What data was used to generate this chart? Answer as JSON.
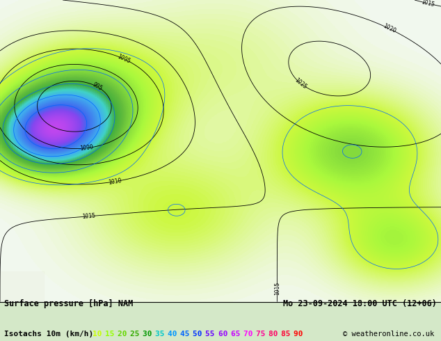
{
  "title_left": "Surface pressure [hPa] NAM",
  "title_right": "Mo 23-09-2024 18:00 UTC (12+06)",
  "subtitle_left": "Isotachs 10m (km/h)",
  "legend_values": [
    10,
    15,
    20,
    25,
    30,
    35,
    40,
    45,
    50,
    55,
    60,
    65,
    70,
    75,
    80,
    85,
    90
  ],
  "legend_colors": [
    "#c8ff00",
    "#96ff00",
    "#64d700",
    "#32aa00",
    "#009600",
    "#00c8c8",
    "#0096ff",
    "#0064ff",
    "#0032ff",
    "#6400ff",
    "#9600ff",
    "#c800ff",
    "#ff00ff",
    "#ff0096",
    "#ff0064",
    "#ff0032",
    "#ff0000"
  ],
  "copyright": "© weatheronline.co.uk",
  "background_color": "#d4e8c8",
  "map_bg": "#c8deb4",
  "text_color_left": "#000000",
  "text_color_right": "#000000"
}
